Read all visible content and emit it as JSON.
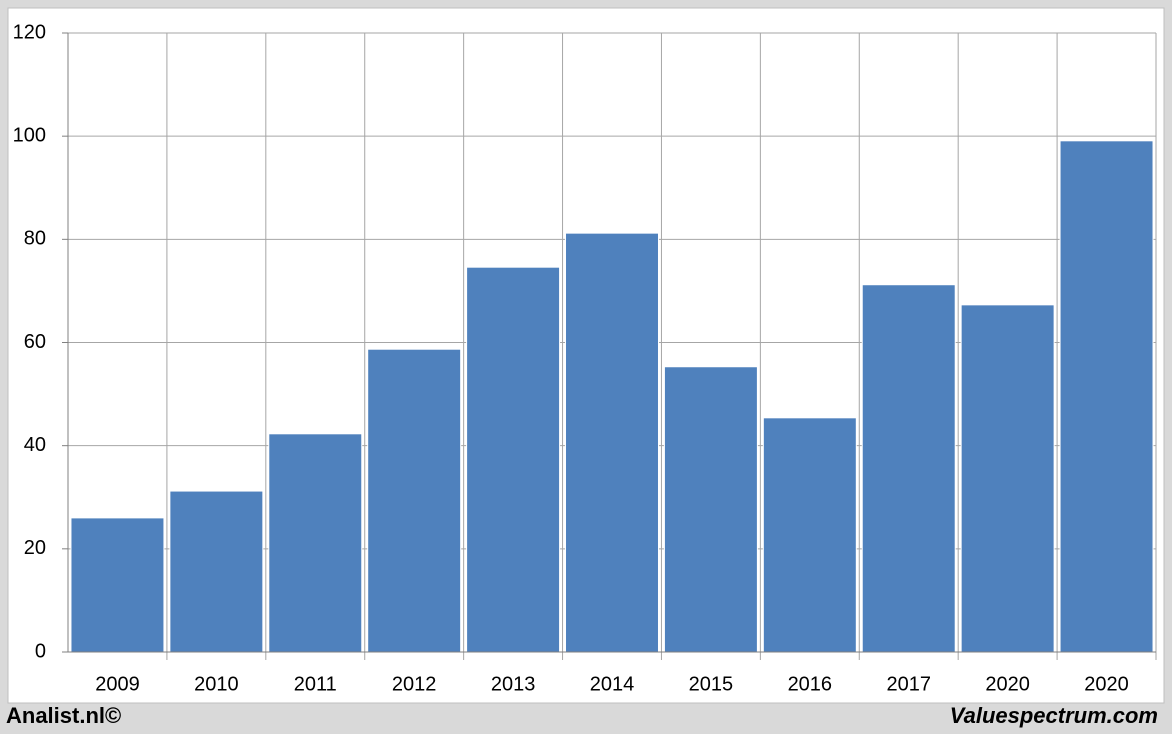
{
  "chart_data": {
    "type": "bar",
    "categories": [
      "2009",
      "2010",
      "2011",
      "2012",
      "2013",
      "2014",
      "2015",
      "2016",
      "2017",
      "2020",
      "2020"
    ],
    "values": [
      26,
      31.2,
      42.3,
      58.7,
      74.6,
      81.2,
      55.3,
      45.4,
      71.2,
      67.3,
      99.1
    ],
    "color": "#4f81bd",
    "ylim": [
      0,
      120
    ],
    "yticks": [
      0,
      20,
      40,
      60,
      80,
      100,
      120
    ],
    "grid": true,
    "footer_left": "Analist.nl©",
    "footer_right": "Valuespectrum.com"
  }
}
